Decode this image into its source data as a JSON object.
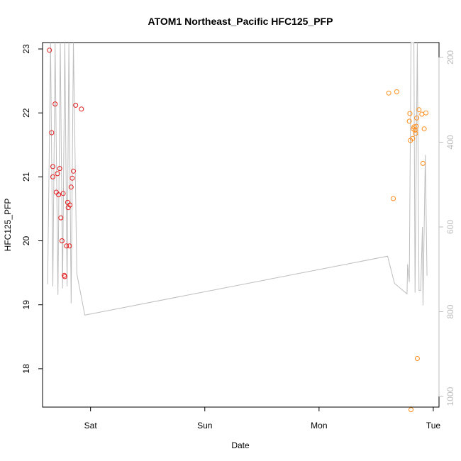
{
  "chart_data": {
    "type": "scatter",
    "title": "ATOM1 Northeast_Pacific HFC125_PFP",
    "xlabel": "Date",
    "ylabel": "HFC125_PFP",
    "x_ticks": [
      "Sat",
      "Sun",
      "Mon",
      "Tue"
    ],
    "y_ticks": [
      18,
      19,
      20,
      21,
      22,
      23
    ],
    "y_right_ticks": [
      200,
      400,
      600,
      800,
      1000
    ],
    "xlim_days": [
      -0.42,
      3.05
    ],
    "ylim": [
      17.4,
      23.1
    ],
    "y_right_lim": [
      165,
      1025
    ],
    "colors": {
      "series1": "#e31a1c",
      "series2": "#ff8c1a",
      "line": "#bdbdbd",
      "right_axis": "#bdbdbd"
    },
    "series": [
      {
        "color": "#e31a1c",
        "points": [
          [
            -0.36,
            22.98
          ],
          [
            -0.34,
            21.69
          ],
          [
            -0.33,
            21.16
          ],
          [
            -0.33,
            21.0
          ],
          [
            -0.31,
            22.14
          ],
          [
            -0.3,
            20.76
          ],
          [
            -0.29,
            21.05
          ],
          [
            -0.28,
            20.72
          ],
          [
            -0.27,
            21.13
          ],
          [
            -0.26,
            20.36
          ],
          [
            -0.25,
            20.0
          ],
          [
            -0.24,
            20.74
          ],
          [
            -0.23,
            19.46
          ],
          [
            -0.225,
            19.44
          ],
          [
            -0.21,
            19.92
          ],
          [
            -0.2,
            20.6
          ],
          [
            -0.195,
            20.52
          ],
          [
            -0.185,
            19.92
          ],
          [
            -0.18,
            20.56
          ],
          [
            -0.17,
            20.84
          ],
          [
            -0.16,
            20.98
          ],
          [
            -0.15,
            21.09
          ],
          [
            -0.13,
            22.12
          ],
          [
            -0.08,
            22.06
          ]
        ]
      },
      {
        "color": "#ff8c1a",
        "points": [
          [
            2.61,
            22.31
          ],
          [
            2.65,
            20.66
          ],
          [
            2.68,
            22.33
          ],
          [
            2.79,
            21.87
          ],
          [
            2.795,
            21.99
          ],
          [
            2.8,
            21.57
          ],
          [
            2.805,
            17.36
          ],
          [
            2.82,
            21.6
          ],
          [
            2.825,
            21.75
          ],
          [
            2.83,
            21.78
          ],
          [
            2.84,
            21.73
          ],
          [
            2.845,
            21.68
          ],
          [
            2.85,
            21.79
          ],
          [
            2.855,
            21.92
          ],
          [
            2.86,
            18.16
          ],
          [
            2.875,
            22.05
          ],
          [
            2.9,
            21.98
          ],
          [
            2.91,
            21.21
          ],
          [
            2.92,
            21.75
          ],
          [
            2.935,
            22.0
          ]
        ]
      }
    ],
    "line": [
      [
        -0.375,
        735
      ],
      [
        -0.35,
        40
      ],
      [
        -0.33,
        740
      ],
      [
        -0.31,
        40
      ],
      [
        -0.285,
        760
      ],
      [
        -0.265,
        40
      ],
      [
        -0.245,
        745
      ],
      [
        -0.225,
        40
      ],
      [
        -0.205,
        740
      ],
      [
        -0.19,
        40
      ],
      [
        -0.17,
        780
      ],
      [
        -0.15,
        40
      ],
      [
        -0.12,
        710
      ],
      [
        -0.05,
        808
      ],
      [
        2.6,
        669
      ],
      [
        2.66,
        733
      ],
      [
        2.77,
        758
      ],
      [
        2.775,
        688
      ],
      [
        2.79,
        730
      ],
      [
        2.805,
        40
      ],
      [
        2.83,
        40
      ],
      [
        2.84,
        755
      ],
      [
        2.86,
        40
      ],
      [
        2.875,
        750
      ],
      [
        2.89,
        750
      ],
      [
        2.905,
        600
      ],
      [
        2.91,
        785
      ],
      [
        2.93,
        430
      ],
      [
        2.945,
        715
      ]
    ]
  }
}
